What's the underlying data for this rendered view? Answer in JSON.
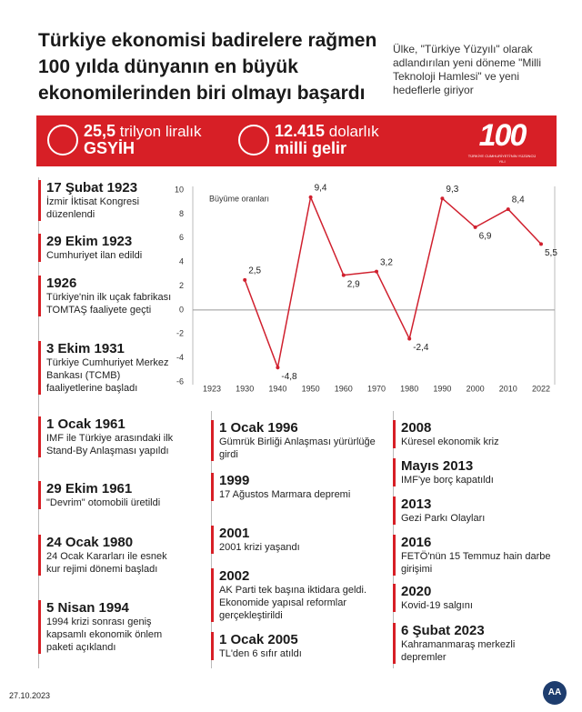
{
  "header": {
    "title": "Türkiye ekonomisi badirelere rağmen 100 yılda dünyanın en büyük ekonomilerinden biri olmayı başardı",
    "subtitle": "Ülke, \"Türkiye Yüzyılı\" olarak adlandırılan yeni döneme \"Milli Teknoloji Hamlesi\" ve yeni hedeflerle giriyor"
  },
  "banner": {
    "items": [
      {
        "amount": "25,5",
        "unit": "trilyon liralık",
        "label": "GSYİH"
      },
      {
        "amount": "12.415",
        "unit": "dolarlık",
        "label": "milli gelir"
      }
    ],
    "logo": {
      "number": "100",
      "caption": "TÜRKİYE CUMHURİYETİ'NİN YÜZÜNCÜ YILI"
    }
  },
  "chart_data": {
    "type": "line",
    "y_label": "Büyüme oranları",
    "categories": [
      "1923",
      "1930",
      "1940",
      "1950",
      "1960",
      "1970",
      "1980",
      "1990",
      "2000",
      "2010",
      "2022"
    ],
    "series": [
      {
        "name": "Büyüme oranları",
        "color": "#d0202e",
        "values": [
          null,
          2.5,
          -4.8,
          9.4,
          2.9,
          3.2,
          -2.4,
          9.3,
          6.9,
          8.4,
          5.5
        ],
        "value_labels": [
          null,
          "2,5",
          "-4,8",
          "9,4",
          "2,9",
          "3,2",
          "-2,4",
          "9,3",
          "6,9",
          "8,4",
          "5,5"
        ]
      }
    ],
    "ylim": [
      -6,
      10
    ],
    "yticks": [
      -6,
      -4,
      -2,
      0,
      2,
      4,
      6,
      8,
      10
    ],
    "grid": false
  },
  "timeline": {
    "columns": [
      [
        {
          "date": "17 Şubat 1923",
          "text": "İzmir İktisat Kongresi düzenlendi"
        },
        {
          "date": "29 Ekim 1923",
          "text": "Cumhuriyet ilan edildi"
        },
        {
          "date": "1926",
          "text": "Türkiye'nin ilk uçak fabrikası TOMTAŞ faaliyete geçti"
        },
        {
          "date": "3 Ekim 1931",
          "text": "Türkiye Cumhuriyet Merkez Bankası (TCMB) faaliyetlerine başladı"
        },
        {
          "date": "1 Ocak 1961",
          "text": "IMF ile Türkiye arasındaki ilk Stand-By Anlaşması yapıldı"
        },
        {
          "date": "29 Ekim 1961",
          "text": "\"Devrim\" otomobili üretildi"
        },
        {
          "date": "24 Ocak 1980",
          "text": "24 Ocak Kararları ile esnek kur rejimi dönemi başladı"
        },
        {
          "date": "5 Nisan 1994",
          "text": "1994 krizi sonrası geniş kapsamlı ekonomik önlem paketi açıklandı"
        }
      ],
      [
        {
          "date": "1 Ocak 1996",
          "text": "Gümrük Birliği Anlaşması yürürlüğe girdi"
        },
        {
          "date": "1999",
          "text": "17 Ağustos Marmara depremi"
        },
        {
          "date": "2001",
          "text": "2001 krizi yaşandı"
        },
        {
          "date": "2002",
          "text": "AK Parti tek başına iktidara geldi. Ekonomide yapısal reformlar gerçekleştirildi"
        },
        {
          "date": "1 Ocak 2005",
          "text": "TL'den 6 sıfır atıldı"
        }
      ],
      [
        {
          "date": "2008",
          "text": "Küresel ekonomik kriz"
        },
        {
          "date": "Mayıs 2013",
          "text": "IMF'ye borç kapatıldı"
        },
        {
          "date": "2013",
          "text": "Gezi Parkı Olayları"
        },
        {
          "date": "2016",
          "text": "FETÖ'nün 15 Temmuz hain darbe girişimi"
        },
        {
          "date": "2020",
          "text": "Kovid-19 salgını"
        },
        {
          "date": "6 Şubat 2023",
          "text": "Kahramanmaraş merkezli depremler"
        }
      ]
    ]
  },
  "footer": {
    "date": "27.10.2023",
    "logo": "AA"
  }
}
